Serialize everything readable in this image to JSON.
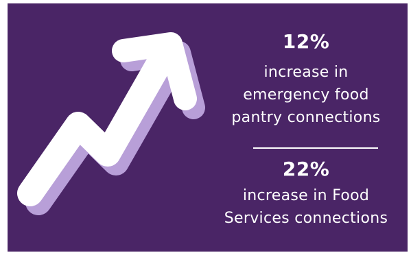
{
  "colors": {
    "background": "#4a2566",
    "arrow": "#ffffff",
    "arrow_shadow": "#b89fd8",
    "text": "#ffffff"
  },
  "graphic": {
    "icon": "trending-up-arrow-icon"
  },
  "stats": [
    {
      "value": "12%",
      "text_lines": [
        "increase in",
        "emergency food",
        "pantry connections"
      ]
    },
    {
      "value": "22%",
      "text_lines": [
        "increase in Food",
        "Services connections"
      ]
    }
  ]
}
